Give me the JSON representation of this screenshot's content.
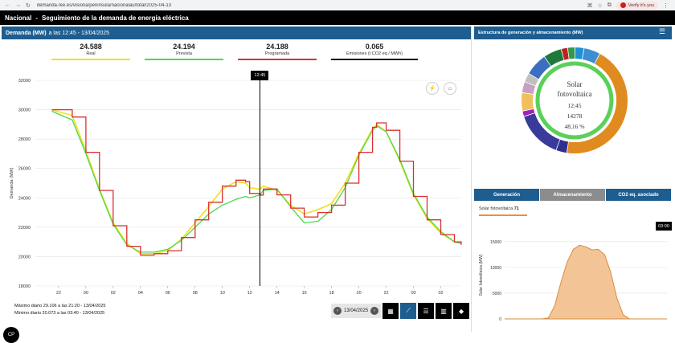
{
  "browser": {
    "url": "demanda.ree.es/visiona/peninsula/nacionalau/total/2025-04-13",
    "verify_label": "Verify it's you"
  },
  "app": {
    "region": "Nacional",
    "separator": "-",
    "title": "Seguimiento de la demanda de energía eléctrica"
  },
  "left_panel": {
    "title": "Demanda (MW)",
    "subtitle": "a las 12:45 - 13/04/2025",
    "stats": [
      {
        "value": "24.588",
        "label": "Real",
        "color": "#f0e020"
      },
      {
        "value": "24.194",
        "label": "Prevista",
        "color": "#4cd94c"
      },
      {
        "value": "24.188",
        "label": "Programada",
        "color": "#d93030"
      },
      {
        "value": "0.065",
        "label": "Emisiones (t CO2 eq / MWh)",
        "color": "#111111"
      }
    ],
    "time_marker": "12:45",
    "max_text": "Máximo diario 29.106 a las 21:20 - 13/04/2025",
    "min_text": "Mínimo diario 20.073 a las 03:40 - 13/04/2025",
    "date": "13/04/2025",
    "avatar": "CP"
  },
  "chart_data": {
    "type": "line",
    "ylabel": "Demanda (MW)",
    "ylim": [
      18000,
      32000
    ],
    "yticks": [
      "32000",
      "30000",
      "28000",
      "26000",
      "24000",
      "22000",
      "20000",
      "18000"
    ],
    "xticks": [
      "22",
      "00",
      "02",
      "04",
      "06",
      "08",
      "10",
      "12",
      "14",
      "16",
      "18",
      "20",
      "22",
      "00",
      "02"
    ],
    "x_hours": [
      -2.5,
      -1,
      0,
      1,
      2,
      3,
      4,
      5,
      6,
      7,
      8,
      9,
      10,
      11,
      11.7,
      12,
      12.75,
      13,
      14,
      15,
      16,
      17,
      18,
      19,
      20,
      21,
      21.3,
      22,
      23,
      24,
      25,
      26,
      27,
      27.5
    ],
    "series": [
      {
        "name": "Real",
        "color": "#f0e020",
        "values": [
          30000,
          29600,
          27200,
          24600,
          22300,
          20900,
          20200,
          20200,
          20400,
          21200,
          22300,
          23400,
          24600,
          25100,
          25000,
          24700,
          24588,
          24800,
          24500,
          23500,
          22900,
          23200,
          23600,
          25000,
          27000,
          28700,
          29000,
          28500,
          26500,
          24200,
          22600,
          21600,
          21000,
          20900
        ]
      },
      {
        "name": "Prevista",
        "color": "#4cd94c",
        "values": [
          29900,
          29300,
          27000,
          24500,
          22200,
          20800,
          20300,
          20300,
          20500,
          21100,
          22000,
          22900,
          23500,
          23900,
          24100,
          24000,
          24194,
          24500,
          24600,
          23400,
          22300,
          22400,
          23200,
          24700,
          26900,
          28600,
          28900,
          28500,
          26600,
          24300,
          22700,
          21700,
          21000,
          20900
        ]
      },
      {
        "name": "Programada",
        "color": "#d93030",
        "values": [
          30000,
          29500,
          27100,
          24500,
          22100,
          20700,
          20100,
          20200,
          20400,
          21300,
          22500,
          23700,
          24800,
          25200,
          25100,
          24300,
          24188,
          24600,
          24200,
          23300,
          22700,
          23000,
          23500,
          25000,
          27100,
          28800,
          29100,
          28600,
          26500,
          24100,
          22500,
          21500,
          21000,
          20800
        ]
      }
    ]
  },
  "right_panel": {
    "title": "Estructura de generación y almacenamiento (MW)",
    "donut": {
      "label1": "Solar",
      "label2": "fotovoltaica",
      "time": "12:45",
      "value": "14278",
      "percent": "48,16 %"
    },
    "tabs": [
      "Generación",
      "Almacenamiento",
      "CO2 eq. asociado"
    ],
    "sub_label": "Solar fotovoltaica",
    "sub_value": "71",
    "time_badge": "03:00",
    "solar_chart": {
      "ylabel": "Solar fotovoltaica (MW)",
      "yticks": [
        "15000",
        "10000",
        "5000",
        "0"
      ],
      "values": [
        0,
        0,
        0,
        0,
        0,
        0,
        0,
        200,
        2500,
        7000,
        11000,
        13500,
        14300,
        14000,
        13400,
        13500,
        12500,
        9000,
        4000,
        800,
        0,
        0,
        0,
        0,
        0,
        0,
        0
      ]
    }
  }
}
